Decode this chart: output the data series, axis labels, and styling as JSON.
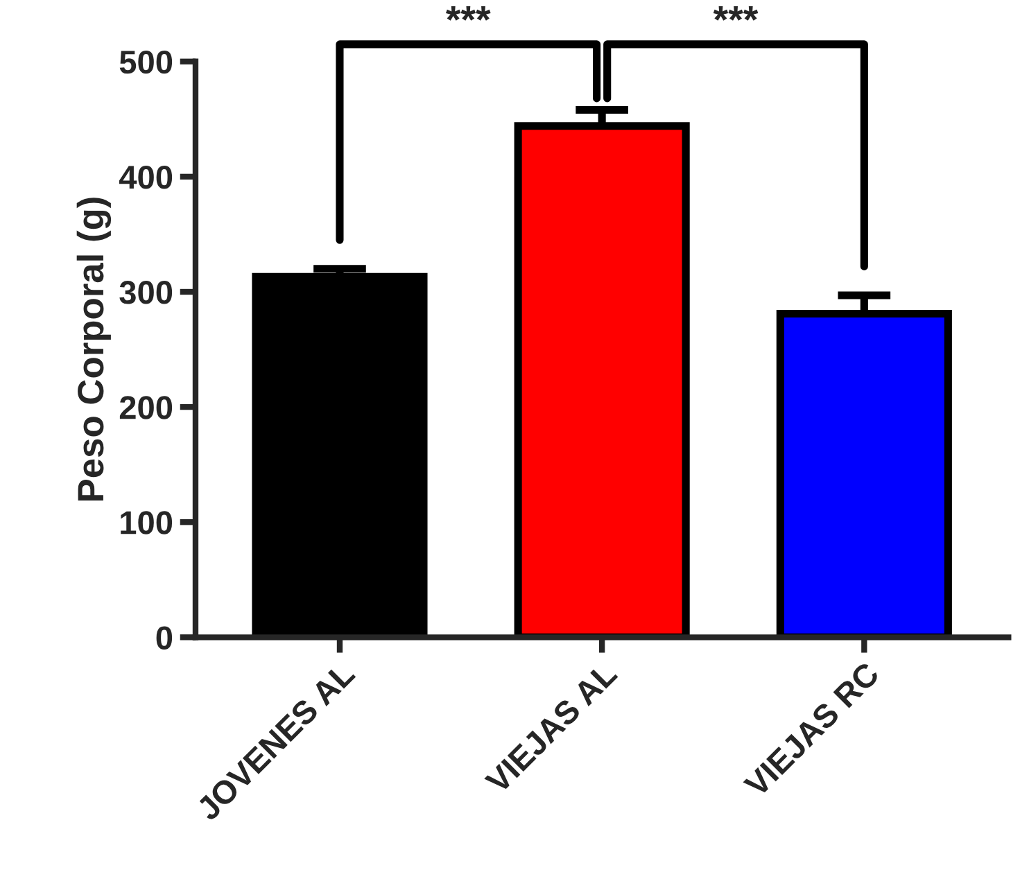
{
  "chart_data": {
    "type": "bar",
    "ylabel": "Peso Corporal (g)",
    "categories": [
      "JOVENES AL",
      "VIEJAS AL",
      "VIEJAS RC"
    ],
    "values": [
      313,
      444,
      281
    ],
    "colors": [
      "#000000",
      "#ff0000",
      "#0000ff"
    ],
    "errors": [
      [
        313,
        320
      ],
      [
        444,
        458
      ],
      [
        281,
        297
      ]
    ],
    "ylim": [
      0,
      500
    ],
    "yticks": [
      0,
      100,
      200,
      300,
      400,
      500
    ],
    "grid": false,
    "legend": false,
    "annotations": [
      "***",
      "***"
    ]
  }
}
